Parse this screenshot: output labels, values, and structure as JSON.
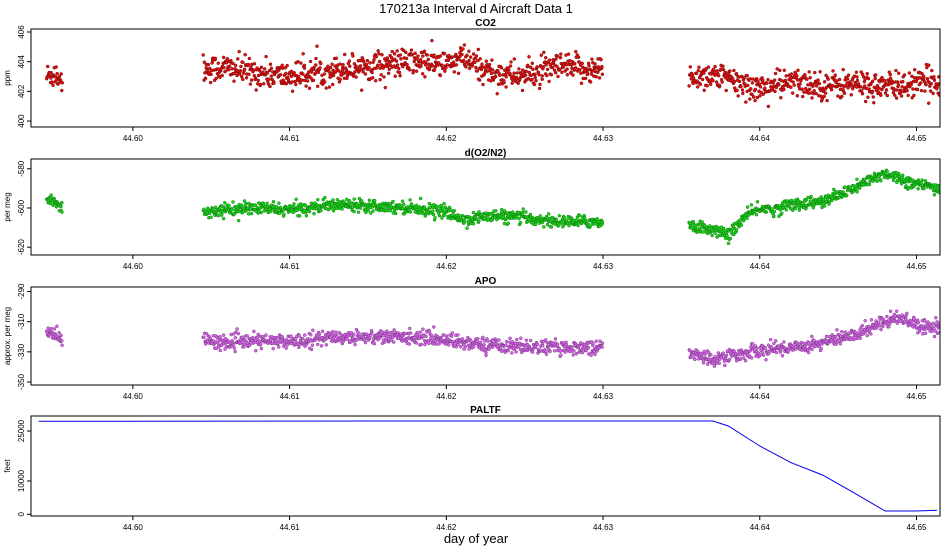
{
  "figure": {
    "title": "170213a   Interval d Aircraft Data 1",
    "xlabel": "day of year"
  },
  "chart_data": [
    {
      "type": "scatter",
      "title": "CO2",
      "ylabel": "ppm",
      "color": "#e01010",
      "xlim": [
        44.5935,
        44.6515
      ],
      "ylim": [
        399.6,
        406.2
      ],
      "xticks": [
        44.6,
        44.61,
        44.62,
        44.63,
        44.64,
        44.65
      ],
      "xtick_labels": [
        "44.60",
        "44.61",
        "44.62",
        "44.63",
        "44.64",
        "44.65"
      ],
      "yticks": [
        400,
        402,
        404,
        406
      ],
      "ytick_labels": [
        "400",
        "402",
        "404",
        "406"
      ],
      "series": [
        {
          "name": "CO2",
          "x": [
            44.5945,
            44.595,
            44.5955,
            44.6045,
            44.606,
            44.608,
            44.61,
            44.612,
            44.614,
            44.616,
            44.618,
            44.62,
            44.621,
            44.623,
            44.625,
            44.627,
            44.629,
            44.63,
            44.6355,
            44.637,
            44.6385,
            44.64,
            44.642,
            44.644,
            44.646,
            44.648,
            44.65,
            44.6515
          ],
          "y": [
            403.0,
            403.2,
            402.8,
            403.5,
            403.6,
            403.2,
            403.0,
            403.3,
            403.6,
            403.8,
            404.0,
            403.8,
            404.2,
            403.2,
            403.0,
            403.6,
            403.5,
            403.4,
            403.0,
            403.1,
            402.6,
            402.2,
            402.6,
            402.4,
            402.5,
            402.3,
            402.5,
            402.7
          ],
          "spread": 0.85
        }
      ]
    },
    {
      "type": "scatter",
      "title": "d(O2/N2)",
      "ylabel": "per meg",
      "color": "#1ad81a",
      "xlim": [
        44.5935,
        44.6515
      ],
      "ylim": [
        -624,
        -575
      ],
      "xticks": [
        44.6,
        44.61,
        44.62,
        44.63,
        44.64,
        44.65
      ],
      "xtick_labels": [
        "44.60",
        "44.61",
        "44.62",
        "44.63",
        "44.64",
        "44.65"
      ],
      "yticks": [
        -620,
        -600,
        -580
      ],
      "ytick_labels": [
        "-620",
        "-600",
        "-580"
      ],
      "series": [
        {
          "name": "d(O2/N2)",
          "x": [
            44.5945,
            44.595,
            44.5955,
            44.6045,
            44.606,
            44.608,
            44.61,
            44.612,
            44.614,
            44.616,
            44.618,
            44.62,
            44.621,
            44.623,
            44.625,
            44.627,
            44.629,
            44.63,
            44.6355,
            44.637,
            44.638,
            44.639,
            44.64,
            44.641,
            44.642,
            44.644,
            44.646,
            44.648,
            44.649,
            44.65,
            44.6515
          ],
          "y": [
            -595,
            -597,
            -600,
            -602,
            -601,
            -600,
            -601,
            -599,
            -598,
            -599,
            -600,
            -602,
            -606,
            -604,
            -605,
            -607,
            -607,
            -607,
            -609,
            -611,
            -614,
            -605,
            -600,
            -601,
            -598,
            -597,
            -590,
            -582,
            -585,
            -588,
            -590
          ],
          "spread": 2.8
        }
      ]
    },
    {
      "type": "scatter",
      "title": "APO",
      "ylabel": "approx. per meg",
      "color": "#da66ee",
      "xlim": [
        44.5935,
        44.6515
      ],
      "ylim": [
        -352,
        -287
      ],
      "xticks": [
        44.6,
        44.61,
        44.62,
        44.63,
        44.64,
        44.65
      ],
      "xtick_labels": [
        "44.60",
        "44.61",
        "44.62",
        "44.63",
        "44.64",
        "44.65"
      ],
      "yticks": [
        -350,
        -330,
        -310,
        -290
      ],
      "ytick_labels": [
        "-350",
        "-330",
        "-310",
        "-290"
      ],
      "series": [
        {
          "name": "APO",
          "x": [
            44.5945,
            44.595,
            44.5955,
            44.6045,
            44.606,
            44.608,
            44.61,
            44.612,
            44.614,
            44.616,
            44.618,
            44.62,
            44.622,
            44.624,
            44.626,
            44.628,
            44.63,
            44.6355,
            44.637,
            44.638,
            44.64,
            44.642,
            44.644,
            44.646,
            44.648,
            44.649,
            44.65,
            44.6515
          ],
          "y": [
            -317,
            -318,
            -322,
            -322,
            -324,
            -323,
            -323,
            -321,
            -320,
            -320,
            -320,
            -322,
            -325,
            -326,
            -327,
            -327,
            -327,
            -331,
            -335,
            -333,
            -329,
            -327,
            -324,
            -319,
            -309,
            -307,
            -312,
            -314
          ],
          "spread": 4.2
        }
      ]
    },
    {
      "type": "line",
      "title": "PALTF",
      "ylabel": "feet",
      "color": "#0000ee",
      "xlim": [
        44.5935,
        44.6515
      ],
      "ylim": [
        -500,
        29500
      ],
      "xticks": [
        44.6,
        44.61,
        44.62,
        44.63,
        44.64,
        44.65
      ],
      "xtick_labels": [
        "44.60",
        "44.61",
        "44.62",
        "44.63",
        "44.64",
        "44.65"
      ],
      "yticks": [
        0,
        10000,
        25000
      ],
      "ytick_labels": [
        "0",
        "10000",
        "25000"
      ],
      "series": [
        {
          "name": "PALTF",
          "x": [
            44.594,
            44.6,
            44.62,
            44.63,
            44.637,
            44.638,
            44.639,
            44.64,
            44.642,
            44.644,
            44.646,
            44.648,
            44.65,
            44.6513
          ],
          "y": [
            27950,
            27950,
            28000,
            28000,
            28000,
            26500,
            23500,
            20500,
            15500,
            11800,
            6500,
            1000,
            1000,
            1200
          ]
        }
      ]
    }
  ]
}
